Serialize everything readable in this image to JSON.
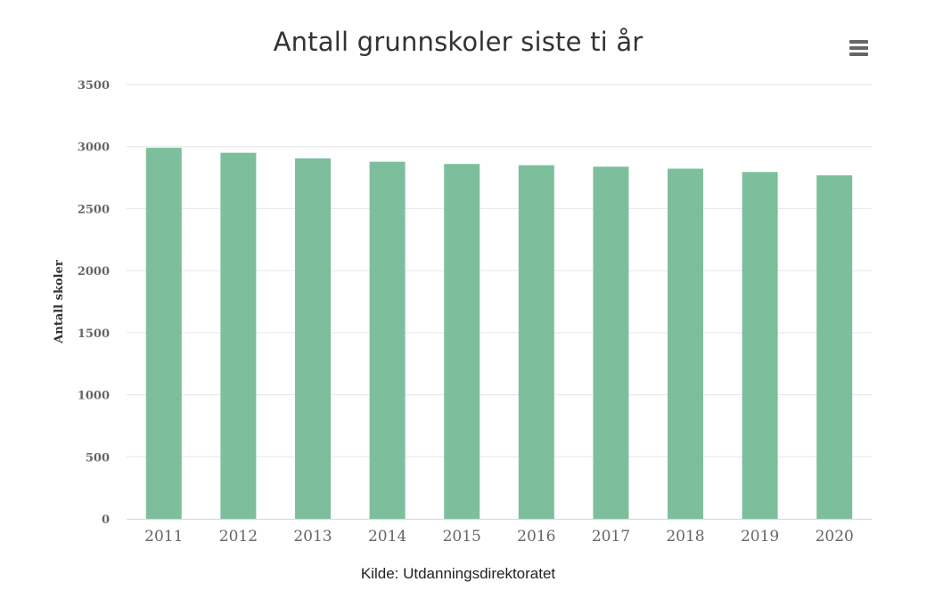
{
  "chart_data": {
    "type": "bar",
    "title": "Antall grunnskoler siste ti år",
    "xlabel": "",
    "ylabel": "Antall skoler",
    "categories": [
      "2011",
      "2012",
      "2013",
      "2014",
      "2015",
      "2016",
      "2017",
      "2018",
      "2019",
      "2020"
    ],
    "values": [
      2990,
      2950,
      2905,
      2878,
      2860,
      2850,
      2838,
      2822,
      2795,
      2768
    ],
    "ylim": [
      0,
      3500
    ],
    "yticks": [
      "0",
      "500",
      "1000",
      "1500",
      "2000",
      "2500",
      "3000",
      "3500"
    ],
    "grid": true,
    "legend": "none",
    "bar_color": "#7dbf9c",
    "source": "Kilde: Utdanningsdirektoratet"
  },
  "menu": {
    "icon": "hamburger-menu-icon"
  }
}
